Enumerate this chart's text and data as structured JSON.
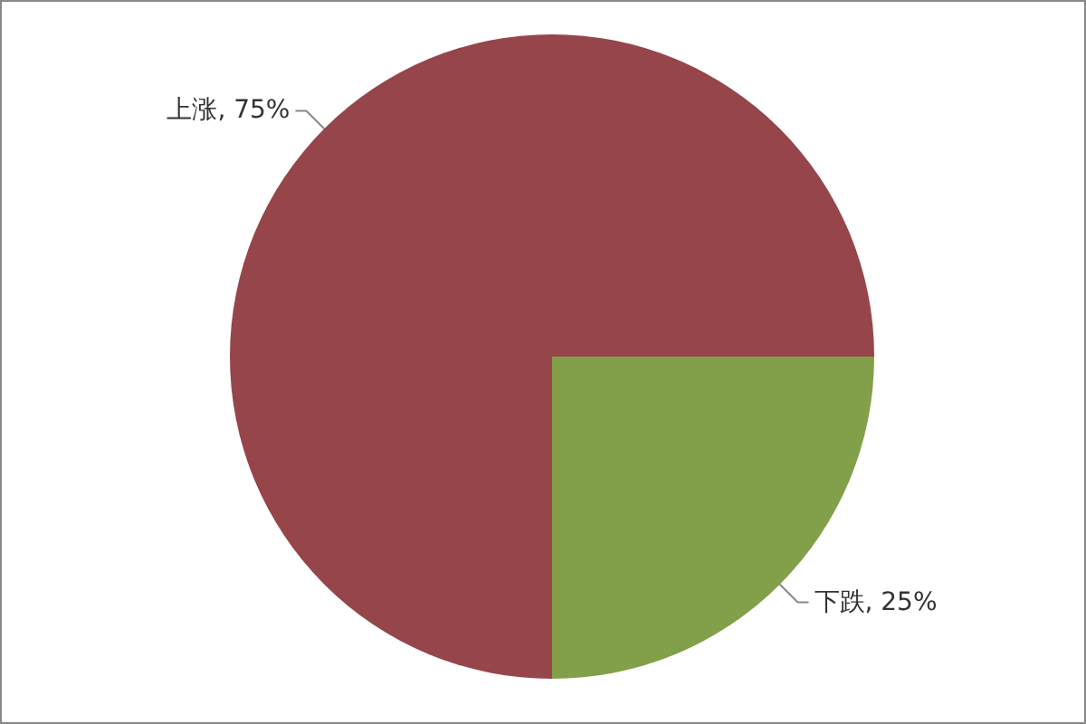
{
  "chart_data": {
    "type": "pie",
    "categories": [
      "上涨",
      "下跌"
    ],
    "values": [
      75,
      25
    ],
    "colors": [
      "#96454a",
      "#82a04a"
    ],
    "value_labels": [
      "75%",
      "25%"
    ]
  }
}
